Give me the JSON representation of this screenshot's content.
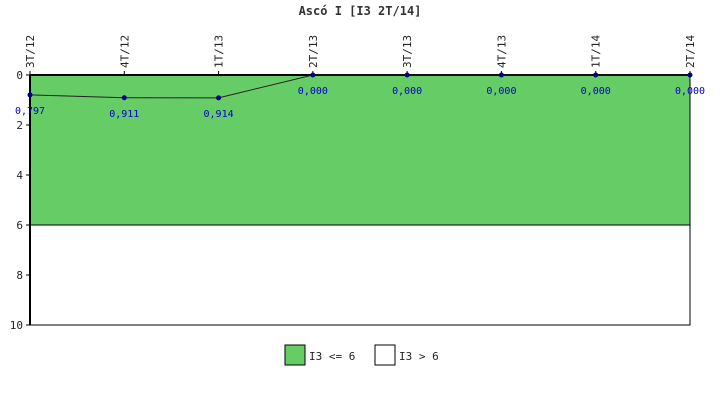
{
  "chart_data": {
    "type": "line",
    "title": "Ascó I [I3 2T/14]",
    "categories": [
      "3T/12",
      "4T/12",
      "1T/13",
      "2T/13",
      "3T/13",
      "4T/13",
      "1T/14",
      "2T/14"
    ],
    "series": [
      {
        "values": [
          0.797,
          0.911,
          0.914,
          0.0,
          0.0,
          0.0,
          0.0,
          0.0
        ],
        "labels": [
          "0,797",
          "0,911",
          "0,914",
          "0,000",
          "0,000",
          "0,000",
          "0,000",
          "0,000"
        ],
        "color": "#000080"
      }
    ],
    "ylim": [
      0,
      10
    ],
    "y_inverted": true,
    "y_ticks": [
      0,
      2,
      4,
      6,
      8,
      10
    ],
    "grid": false,
    "legend_position": "bottom-center",
    "bands": [
      {
        "label": "I3 <= 6",
        "from": 0,
        "to": 6,
        "color": "#66cc66"
      },
      {
        "label": "I3 > 6",
        "from": 6,
        "to": 10,
        "color": "#ffffff"
      }
    ]
  }
}
